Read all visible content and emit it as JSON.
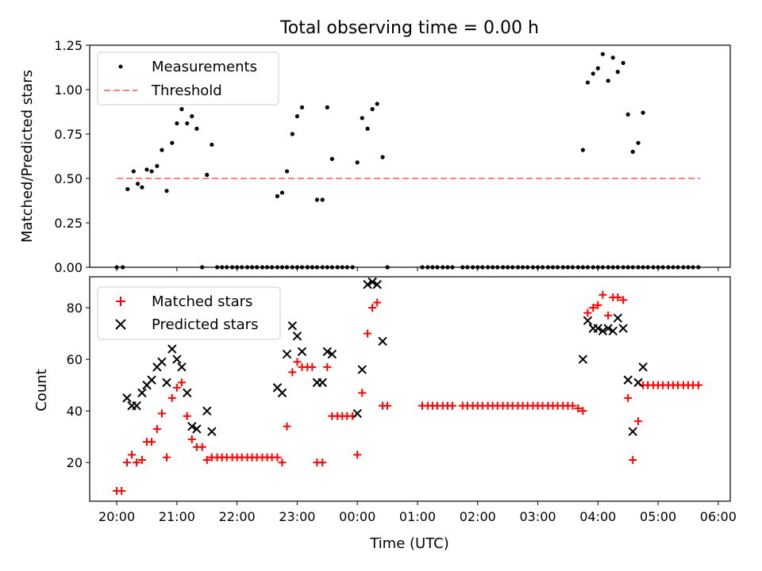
{
  "chart_data": [
    {
      "type": "scatter",
      "title": "Total observing time = 0.00 h",
      "ylabel": "Matched/Predicted stars",
      "xlabel": "",
      "ylim": [
        0,
        1.25
      ],
      "yticks": [
        "0.00",
        "0.25",
        "0.50",
        "0.75",
        "1.00",
        "1.25"
      ],
      "legend": {
        "location": "upper-left",
        "entries": [
          "Measurements",
          "Threshold"
        ]
      },
      "threshold": {
        "name": "Threshold",
        "value": 0.5,
        "x_start": 0.0,
        "x_end": 9.7,
        "color": "#ff7f7f",
        "style": "dashed"
      },
      "series": [
        {
          "name": "Measurements",
          "color": "#000000",
          "marker": "dot",
          "x": [
            0.0,
            0.1,
            0.18,
            0.28,
            0.35,
            0.42,
            0.5,
            0.58,
            0.67,
            0.75,
            0.83,
            0.92,
            1.0,
            1.08,
            1.17,
            1.25,
            1.33,
            1.42,
            1.5,
            1.58,
            1.67,
            1.75,
            1.83,
            1.92,
            2.0,
            2.08,
            2.17,
            2.25,
            2.33,
            2.42,
            2.5,
            2.58,
            2.67,
            2.75,
            2.83,
            2.92,
            3.0,
            3.08,
            3.17,
            3.25,
            3.33,
            3.42,
            3.5,
            3.58,
            3.67,
            3.75,
            3.83,
            3.92,
            4.0,
            4.08,
            4.17,
            4.25,
            4.33,
            4.42,
            4.5,
            5.08,
            5.17,
            5.25,
            5.33,
            5.42,
            5.5,
            5.58,
            5.75,
            5.83,
            5.92,
            6.0,
            6.08,
            6.17,
            6.25,
            6.33,
            6.42,
            6.5,
            6.58,
            6.67,
            6.75,
            6.83,
            6.92,
            7.0,
            7.08,
            7.17,
            7.25,
            7.33,
            7.42,
            7.5,
            7.58,
            7.67,
            7.75,
            7.83,
            7.92,
            8.0,
            8.08,
            8.17,
            8.25,
            8.33,
            8.42,
            8.5,
            8.58,
            8.67,
            8.75,
            8.83,
            8.92,
            9.0,
            9.08,
            9.17,
            9.25,
            9.33,
            9.42,
            9.5,
            9.58,
            9.67
          ],
          "y": [
            0.0,
            0.0,
            0.44,
            0.54,
            0.47,
            0.45,
            0.55,
            0.54,
            0.57,
            0.66,
            0.43,
            0.7,
            0.81,
            0.89,
            0.81,
            0.85,
            0.78,
            0.0,
            0.52,
            0.69,
            0.0,
            0.0,
            0.0,
            0.0,
            0.0,
            0.0,
            0.0,
            0.0,
            0.0,
            0.0,
            0.0,
            0.0,
            0.0,
            0.0,
            0.0,
            0.0,
            0.0,
            0.0,
            0.0,
            0.0,
            0.0,
            0.0,
            0.0,
            0.0,
            0.0,
            0.0,
            0.0,
            0.0,
            0.59,
            0.84,
            0.78,
            0.89,
            0.92,
            0.62,
            0.0,
            0.0,
            0.0,
            0.0,
            0.0,
            0.0,
            0.0,
            0.0,
            0.0,
            0.0,
            0.0,
            0.0,
            0.0,
            0.0,
            0.0,
            0.0,
            0.0,
            0.0,
            0.0,
            0.0,
            0.0,
            0.0,
            0.0,
            0.0,
            0.0,
            0.0,
            0.0,
            0.0,
            0.0,
            0.0,
            0.0,
            0.0,
            0.0,
            0.0,
            0.0,
            0.0,
            0.0,
            0.0,
            0.0,
            0.0,
            0.0,
            0.0,
            0.0,
            0.0,
            0.0,
            0.0,
            0.0,
            0.0,
            0.0,
            0.0,
            0.0,
            0.0,
            0.0,
            0.0,
            0.0,
            0.0
          ]
        },
        {
          "name": "Measurements",
          "color": "#000000",
          "marker": "dot",
          "x": [
            2.67,
            2.75,
            2.83,
            2.92,
            3.0,
            3.08,
            3.17,
            3.25,
            3.33,
            3.42,
            3.5,
            3.58,
            7.75,
            7.83,
            7.92,
            8.0,
            8.08,
            8.17,
            8.25,
            8.33,
            8.42,
            8.5,
            8.58,
            8.67,
            8.75
          ],
          "y": [
            0.4,
            0.42,
            0.54,
            0.75,
            0.85,
            0.9,
            0.0,
            0.0,
            0.38,
            0.38,
            0.9,
            0.61,
            0.66,
            1.04,
            1.09,
            1.12,
            1.2,
            1.05,
            1.18,
            1.1,
            1.15,
            0.86,
            0.65,
            0.7,
            0.87
          ]
        }
      ]
    },
    {
      "type": "scatter",
      "title": "",
      "ylabel": "Count",
      "xlabel": "Time (UTC)",
      "ylim": [
        5,
        92
      ],
      "yticks": [
        "20",
        "40",
        "60",
        "80"
      ],
      "xticks": [
        "20:00",
        "21:00",
        "22:00",
        "23:00",
        "00:00",
        "01:00",
        "02:00",
        "03:00",
        "04:00",
        "05:00",
        "06:00"
      ],
      "xlim_hours_since_20": [
        -0.45,
        10.2
      ],
      "legend": {
        "location": "upper-left",
        "entries": [
          "Matched stars",
          "Predicted stars"
        ]
      },
      "series": [
        {
          "name": "Matched stars",
          "color": "#ff0000",
          "marker": "plus",
          "x": [
            0.0,
            0.08,
            0.17,
            0.25,
            0.33,
            0.42,
            0.5,
            0.58,
            0.67,
            0.75,
            0.83,
            0.92,
            1.0,
            1.08,
            1.17,
            1.25,
            1.33,
            1.42,
            1.5,
            1.58,
            1.67,
            1.75,
            1.83,
            1.92,
            2.0,
            2.08,
            2.17,
            2.25,
            2.33,
            2.42,
            2.5,
            2.58,
            2.67,
            2.75,
            2.83,
            2.92,
            3.0,
            3.08,
            3.17,
            3.25,
            3.33,
            3.42,
            3.5,
            3.58,
            3.67,
            3.75,
            3.83,
            3.92,
            4.0,
            4.08,
            4.17,
            4.25,
            4.33,
            4.42,
            4.5,
            5.08,
            5.17,
            5.25,
            5.33,
            5.42,
            5.5,
            5.58,
            5.75,
            5.83,
            5.92,
            6.0,
            6.08,
            6.17,
            6.25,
            6.33,
            6.42,
            6.5,
            6.58,
            6.67,
            6.75,
            6.83,
            6.92,
            7.0,
            7.08,
            7.17,
            7.25,
            7.33,
            7.42,
            7.5,
            7.58,
            7.67,
            7.75,
            7.83,
            7.92,
            8.0,
            8.08,
            8.17,
            8.25,
            8.33,
            8.42,
            8.5,
            8.58,
            8.67,
            8.75,
            8.83,
            8.92,
            9.0,
            9.08,
            9.17,
            9.25,
            9.33,
            9.42,
            9.5,
            9.58,
            9.67
          ],
          "y": [
            9,
            9,
            20,
            23,
            20,
            21,
            28,
            28,
            33,
            39,
            22,
            45,
            49,
            51,
            38,
            29,
            26,
            26,
            21,
            22,
            22,
            22,
            22,
            22,
            22,
            22,
            22,
            22,
            22,
            22,
            22,
            22,
            22,
            20,
            34,
            55,
            59,
            57,
            57,
            57,
            20,
            20,
            57,
            38,
            38,
            38,
            38,
            38,
            23,
            47,
            70,
            80,
            82,
            42,
            42,
            42,
            42,
            42,
            42,
            42,
            42,
            42,
            42,
            42,
            42,
            42,
            42,
            42,
            42,
            42,
            42,
            42,
            42,
            42,
            42,
            42,
            42,
            42,
            42,
            42,
            42,
            42,
            42,
            42,
            42,
            41,
            40,
            78,
            80,
            81,
            85,
            77,
            84,
            84,
            83,
            45,
            21,
            36,
            50,
            50,
            50,
            50,
            50,
            50,
            50,
            50,
            50,
            50,
            50,
            50
          ]
        },
        {
          "name": "Predicted stars",
          "color": "#000000",
          "marker": "x",
          "x": [
            0.17,
            0.25,
            0.33,
            0.42,
            0.5,
            0.58,
            0.67,
            0.75,
            0.83,
            0.92,
            1.0,
            1.08,
            1.17,
            1.25,
            1.33,
            1.5,
            1.58,
            2.67,
            2.75,
            2.83,
            2.92,
            3.0,
            3.08,
            3.33,
            3.42,
            3.5,
            3.58,
            4.0,
            4.08,
            4.17,
            4.25,
            4.33,
            4.42,
            7.75,
            7.83,
            7.92,
            8.0,
            8.08,
            8.17,
            8.25,
            8.33,
            8.42,
            8.5,
            8.58,
            8.67,
            8.75
          ],
          "y": [
            45,
            42,
            42,
            47,
            50,
            52,
            57,
            59,
            51,
            64,
            60,
            57,
            47,
            34,
            33,
            40,
            32,
            49,
            47,
            62,
            73,
            69,
            63,
            51,
            51,
            63,
            62,
            39,
            56,
            89,
            90,
            89,
            67,
            60,
            75,
            72,
            72,
            71,
            72,
            71,
            76,
            72,
            52,
            32,
            51,
            57
          ]
        }
      ]
    }
  ]
}
